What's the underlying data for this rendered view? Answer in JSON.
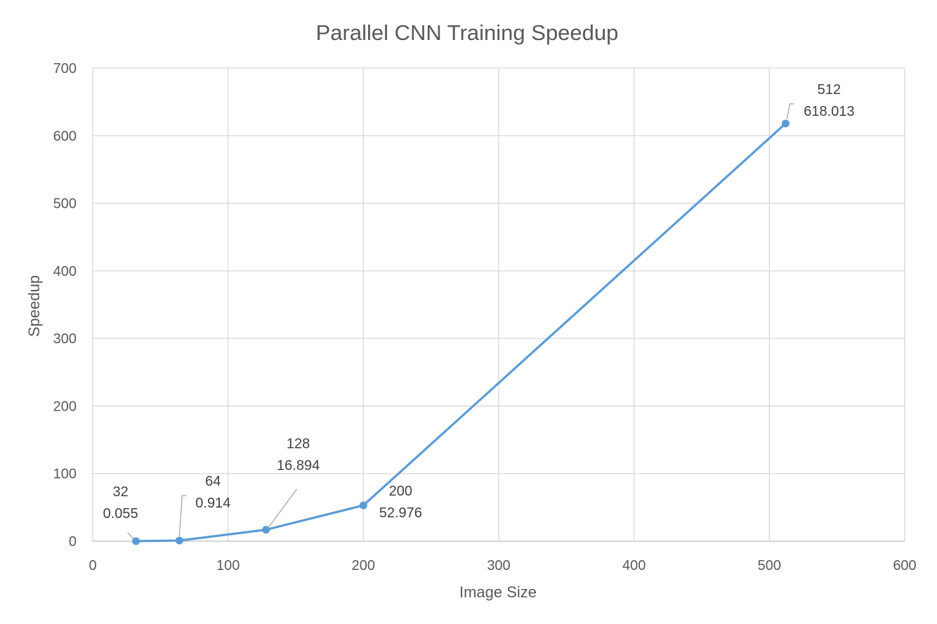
{
  "chart_data": {
    "type": "scatter",
    "title": "Parallel CNN Training Speedup",
    "xlabel": "Image Size",
    "ylabel": "Speedup",
    "xlim": [
      0,
      600
    ],
    "ylim": [
      0,
      700
    ],
    "xticks": [
      "0",
      "100",
      "200",
      "300",
      "400",
      "500",
      "600"
    ],
    "yticks": [
      "0",
      "100",
      "200",
      "300",
      "400",
      "500",
      "600",
      "700"
    ],
    "grid": true,
    "legend": "none",
    "line_color": "#5b9bd5",
    "series": [
      {
        "x": [
          32,
          64,
          128,
          200,
          512
        ],
        "y": [
          0.055,
          0.914,
          16.894,
          52.976,
          618.013
        ],
        "labels": [
          [
            "32",
            "0.055"
          ],
          [
            "64",
            "0.914"
          ],
          [
            "128",
            "16.894"
          ],
          [
            "200",
            "52.976"
          ],
          [
            "512",
            "618.013"
          ]
        ]
      }
    ]
  }
}
